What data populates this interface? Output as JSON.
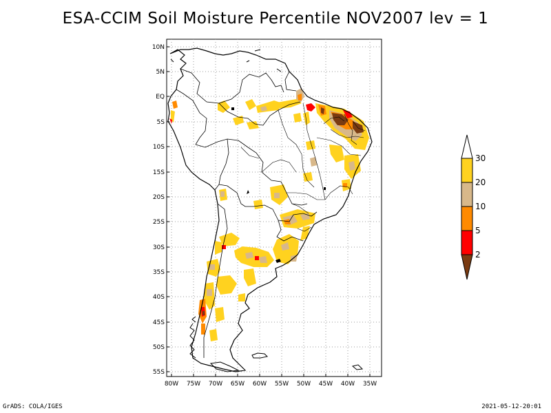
{
  "title": "ESA-CCIM Soil Moisture Percentile NOV2007 lev = 1",
  "footer": {
    "left": "GrADS: COLA/IGES",
    "right": "2021-05-12-20:01"
  },
  "lat_ticks": [
    "10N",
    "5N",
    "EQ",
    "5S",
    "10S",
    "15S",
    "20S",
    "25S",
    "30S",
    "35S",
    "40S",
    "45S",
    "50S",
    "55S"
  ],
  "lon_ticks": [
    "80W",
    "75W",
    "70W",
    "65W",
    "60W",
    "55W",
    "50W",
    "45W",
    "40W",
    "35W"
  ],
  "colorbar": {
    "labels": [
      "2",
      "5",
      "10",
      "20",
      "30"
    ],
    "colors": {
      "below_2": "#7a3b12",
      "2_5": "#ff0000",
      "5_10": "#ff8a00",
      "10_20": "#d8b88a",
      "20_30": "#ffd21f",
      "above_30": "#ffffff"
    }
  }
}
